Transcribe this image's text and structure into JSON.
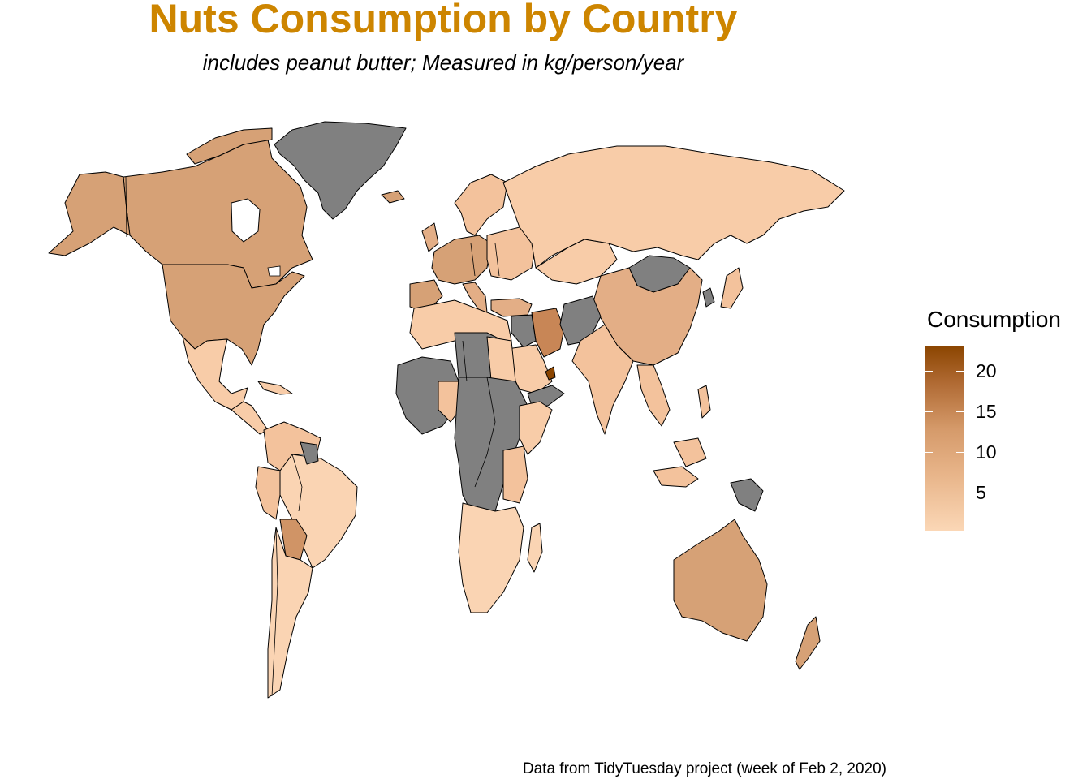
{
  "title": "Nuts Consumption by Country",
  "subtitle": "includes peanut butter; Measured in kg/person/year",
  "caption": "Data from TidyTuesday project (week of Feb 2, 2020)",
  "legend": {
    "title": "Consumption",
    "ticks": [
      "20",
      "15",
      "10",
      "5"
    ],
    "range": [
      0.5,
      23.5
    ],
    "color_low": "#FBD7B6",
    "color_high": "#8B4500",
    "no_data_color": "#808080"
  }
}
